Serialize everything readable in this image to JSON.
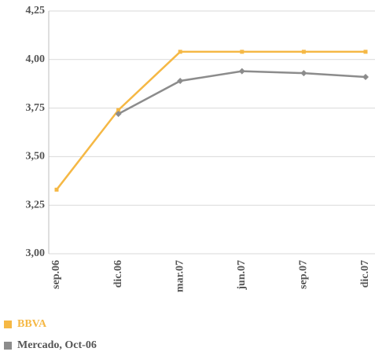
{
  "chart_data": {
    "type": "line",
    "categories": [
      "sep.06",
      "dic.06",
      "mar.07",
      "jun.07",
      "sep.07",
      "dic.07"
    ],
    "series": [
      {
        "name": "BBVA",
        "color": "#f5b845",
        "values": [
          3.33,
          3.74,
          4.04,
          4.04,
          4.04,
          4.04
        ]
      },
      {
        "name": "Mercado, Oct-06",
        "color": "#8c8c8c",
        "values": [
          null,
          3.72,
          3.89,
          3.94,
          3.93,
          3.91
        ]
      }
    ],
    "ylim": [
      3.0,
      4.25
    ],
    "yticks": [
      {
        "value": 3.0,
        "label": "3,00"
      },
      {
        "value": 3.25,
        "label": "3,25"
      },
      {
        "value": 3.5,
        "label": "3,50"
      },
      {
        "value": 3.75,
        "label": "3,75"
      },
      {
        "value": 4.0,
        "label": "4,00"
      },
      {
        "value": 4.25,
        "label": "4,25"
      }
    ],
    "grid": true
  }
}
